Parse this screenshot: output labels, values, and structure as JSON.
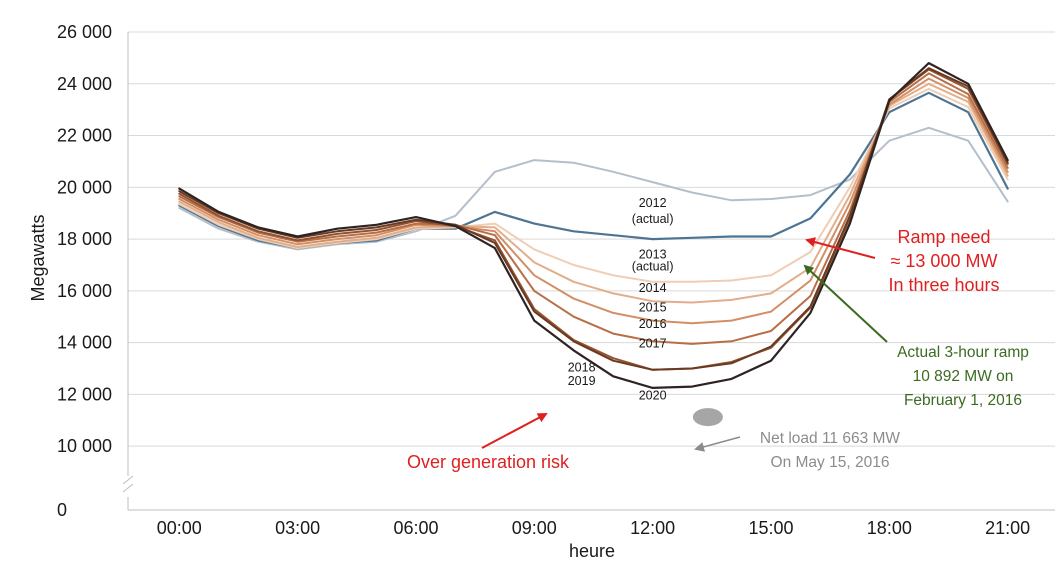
{
  "chart_data": {
    "type": "line",
    "xlabel": "heure",
    "ylabel": "Megawatts",
    "x": [
      0,
      1,
      2,
      3,
      4,
      5,
      6,
      7,
      8,
      9,
      10,
      11,
      12,
      13,
      14,
      15,
      16,
      17,
      18,
      19,
      20,
      21
    ],
    "xlim": [
      -1.3,
      22.2
    ],
    "ylim": [
      8500,
      26000
    ],
    "x_ticks": [
      0,
      3,
      6,
      9,
      12,
      15,
      18,
      21
    ],
    "x_tick_labels": [
      "00:00",
      "03:00",
      "06:00",
      "09:00",
      "12:00",
      "15:00",
      "18:00",
      "21:00"
    ],
    "y_ticks": [
      10000,
      12000,
      14000,
      16000,
      18000,
      20000,
      22000,
      24000,
      26000
    ],
    "y_tick_labels": [
      "10 000",
      "12 000",
      "14 000",
      "16 000",
      "18 000",
      "20 000",
      "22 000",
      "24 000",
      "26 000"
    ],
    "y_zero_label": "0",
    "grid": "horizontal",
    "series": [
      {
        "name": "2012 (actual)",
        "color": "#b4bfcc",
        "values": [
          19200,
          18400,
          17900,
          17600,
          17800,
          17900,
          18300,
          18900,
          20600,
          21050,
          20950,
          20600,
          20200,
          19800,
          19500,
          19550,
          19700,
          20300,
          21800,
          22300,
          21800,
          19450
        ]
      },
      {
        "name": "2013 (actual)",
        "color": "#4e7494",
        "values": [
          19300,
          18500,
          17950,
          17650,
          17850,
          17950,
          18400,
          18400,
          19050,
          18600,
          18300,
          18150,
          18000,
          18050,
          18100,
          18100,
          18800,
          20500,
          22900,
          23650,
          22900,
          19950
        ]
      },
      {
        "name": "2014",
        "color": "#f0cdb3",
        "values": [
          19350,
          18550,
          18000,
          17650,
          17850,
          18000,
          18400,
          18450,
          18600,
          17600,
          17000,
          16600,
          16350,
          16350,
          16400,
          16600,
          17500,
          20000,
          23050,
          23800,
          23100,
          20300
        ]
      },
      {
        "name": "2015",
        "color": "#e2ae8a",
        "values": [
          19450,
          18650,
          18050,
          17700,
          17900,
          18050,
          18450,
          18500,
          18450,
          17100,
          16350,
          15900,
          15600,
          15550,
          15650,
          15900,
          16900,
          19700,
          23150,
          24000,
          23300,
          20450
        ]
      },
      {
        "name": "2016",
        "color": "#d18f66",
        "values": [
          19550,
          18750,
          18150,
          17800,
          18000,
          18150,
          18550,
          18500,
          18300,
          16600,
          15700,
          15150,
          14850,
          14750,
          14850,
          15200,
          16400,
          19400,
          23200,
          24200,
          23450,
          20600
        ]
      },
      {
        "name": "2017",
        "color": "#b86e47",
        "values": [
          19650,
          18850,
          18250,
          17900,
          18100,
          18250,
          18600,
          18550,
          18150,
          16000,
          15000,
          14350,
          14050,
          13950,
          14050,
          14450,
          15800,
          19100,
          23300,
          24400,
          23600,
          20750
        ]
      },
      {
        "name": "2018",
        "color": "#94532f",
        "values": [
          19750,
          18900,
          18300,
          17950,
          18200,
          18350,
          18700,
          18500,
          17950,
          15300,
          14100,
          13400,
          12950,
          13000,
          13250,
          13800,
          15350,
          18800,
          23400,
          24550,
          23800,
          20900
        ]
      },
      {
        "name": "2019",
        "color": "#6a3a22",
        "values": [
          19850,
          19000,
          18400,
          18050,
          18300,
          18450,
          18750,
          18550,
          17850,
          15200,
          14050,
          13300,
          12950,
          13000,
          13200,
          13850,
          15400,
          18900,
          23400,
          24600,
          23900,
          20950
        ]
      },
      {
        "name": "2020",
        "color": "#2e2321",
        "values": [
          19950,
          19050,
          18450,
          18100,
          18400,
          18550,
          18850,
          18500,
          17650,
          14850,
          13700,
          12700,
          12250,
          12300,
          12600,
          13300,
          15150,
          18600,
          23350,
          24800,
          24000,
          21050
        ]
      }
    ],
    "series_labels": [
      {
        "text": "2012",
        "x": 12.0,
        "y": 19230
      },
      {
        "text": "(actual)",
        "x": 12.0,
        "y": 18630
      },
      {
        "text": "2013",
        "x": 12.0,
        "y": 17250
      },
      {
        "text": "(actual)",
        "x": 12.0,
        "y": 16780
      },
      {
        "text": "2014",
        "x": 12.0,
        "y": 15960
      },
      {
        "text": "2015",
        "x": 12.0,
        "y": 15200
      },
      {
        "text": "2016",
        "x": 12.0,
        "y": 14560
      },
      {
        "text": "2017",
        "x": 12.0,
        "y": 13820
      },
      {
        "text": "2018",
        "x": 10.2,
        "y": 12880
      },
      {
        "text": "2019",
        "x": 10.2,
        "y": 12360
      },
      {
        "text": "2020",
        "x": 12.0,
        "y": 11800
      }
    ],
    "marker": {
      "label": "Net load 11 663 MW On May 15, 2016",
      "x": 13.4,
      "y": 11663
    },
    "annotations": [
      {
        "id": "ramp-need",
        "color": "#e02020",
        "lines": [
          "Ramp need",
          "≈ 13 000 MW",
          "In three hours"
        ]
      },
      {
        "id": "actual-ramp",
        "color": "#3b6b21",
        "lines": [
          "Actual 3-hour ramp",
          "10 892 MW on",
          "February 1, 2016"
        ]
      },
      {
        "id": "over-generation",
        "color": "#e02020",
        "lines": [
          "Over generation risk"
        ]
      },
      {
        "id": "net-load",
        "color": "#8c8c8c",
        "lines": [
          "Net load 11 663 MW",
          "On May 15, 2016"
        ]
      }
    ]
  }
}
